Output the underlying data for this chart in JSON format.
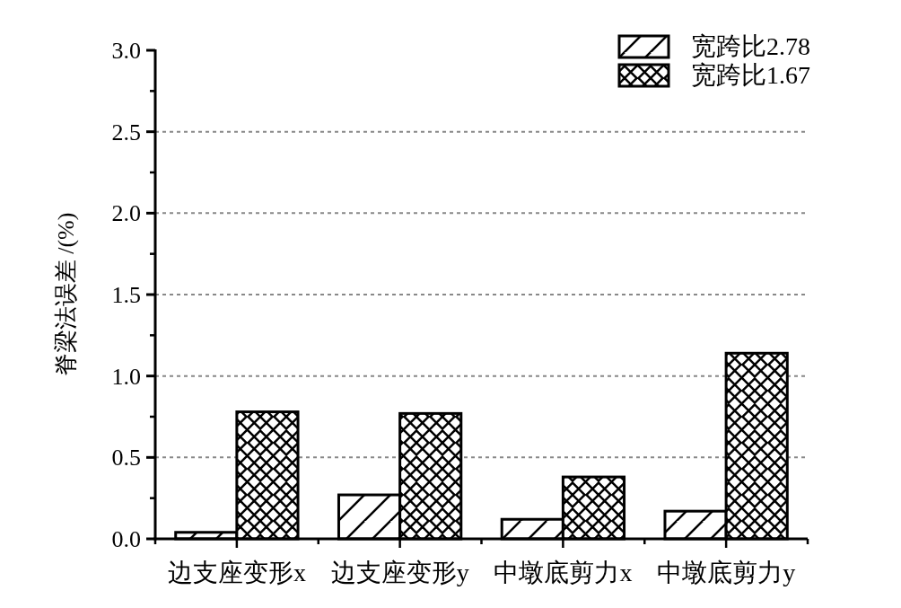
{
  "chart_data": {
    "type": "bar",
    "ylabel": "脊梁法误差 /(%)",
    "categories": [
      "边支座变形x",
      "边支座变形y",
      "中墩底剪力x",
      "中墩底剪力y"
    ],
    "series": [
      {
        "name": "宽跨比2.78",
        "color": "#000000",
        "values": [
          0.04,
          0.27,
          0.12,
          0.17
        ]
      },
      {
        "name": "宽跨比1.67",
        "color": "#000000",
        "values": [
          0.78,
          0.77,
          0.38,
          1.14
        ]
      }
    ],
    "ylim": [
      0,
      3.0
    ],
    "yticks": [
      {
        "value": 0,
        "label": "0.0"
      },
      {
        "value": 0.5,
        "label": "0.5"
      },
      {
        "value": 1,
        "label": "1.0"
      },
      {
        "value": 1.5,
        "label": "1.5"
      },
      {
        "value": 2,
        "label": "2.0"
      },
      {
        "value": 2.5,
        "label": "2.5"
      },
      {
        "value": 3,
        "label": "3.0"
      }
    ],
    "grid": "y",
    "legend": "top right"
  }
}
